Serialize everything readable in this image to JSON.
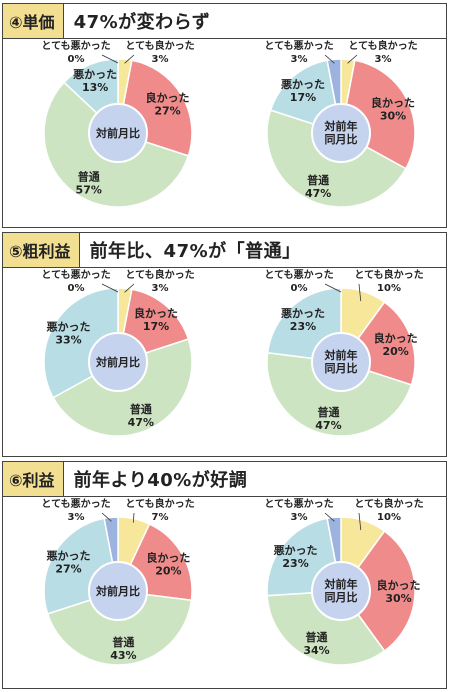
{
  "colors": {
    "とても良かった": "#f7e79b",
    "良かった": "#ef8b8b",
    "普通": "#cde4c2",
    "悪かった": "#b9dde5",
    "とても悪かった": "#9db3df",
    "center": "#c5d3ee",
    "tag_bg": "#f3df92"
  },
  "chart_data": [
    {
      "type": "pie",
      "tag": "④単価",
      "headline": "47%が変わらず",
      "charts": [
        {
          "center": [
            "対前月比"
          ],
          "slices": [
            {
              "label": "とても良かった",
              "value": 3
            },
            {
              "label": "良かった",
              "value": 27
            },
            {
              "label": "普通",
              "value": 57
            },
            {
              "label": "悪かった",
              "value": 13
            },
            {
              "label": "とても悪かった",
              "value": 0
            }
          ]
        },
        {
          "center": [
            "対前年",
            "同月比"
          ],
          "slices": [
            {
              "label": "とても良かった",
              "value": 3
            },
            {
              "label": "良かった",
              "value": 30
            },
            {
              "label": "普通",
              "value": 47
            },
            {
              "label": "悪かった",
              "value": 17
            },
            {
              "label": "とても悪かった",
              "value": 3
            }
          ]
        }
      ]
    },
    {
      "type": "pie",
      "tag": "⑤粗利益",
      "headline": "前年比、47%が「普通」",
      "charts": [
        {
          "center": [
            "対前月比"
          ],
          "slices": [
            {
              "label": "とても良かった",
              "value": 3
            },
            {
              "label": "良かった",
              "value": 17
            },
            {
              "label": "普通",
              "value": 47
            },
            {
              "label": "悪かった",
              "value": 33
            },
            {
              "label": "とても悪かった",
              "value": 0
            }
          ]
        },
        {
          "center": [
            "対前年",
            "同月比"
          ],
          "slices": [
            {
              "label": "とても良かった",
              "value": 10
            },
            {
              "label": "良かった",
              "value": 20
            },
            {
              "label": "普通",
              "value": 47
            },
            {
              "label": "悪かった",
              "value": 23
            },
            {
              "label": "とても悪かった",
              "value": 0
            }
          ]
        }
      ]
    },
    {
      "type": "pie",
      "tag": "⑥利益",
      "headline": "前年より40%が好調",
      "charts": [
        {
          "center": [
            "対前月比"
          ],
          "slices": [
            {
              "label": "とても良かった",
              "value": 7
            },
            {
              "label": "良かった",
              "value": 20
            },
            {
              "label": "普通",
              "value": 43
            },
            {
              "label": "悪かった",
              "value": 27
            },
            {
              "label": "とても悪かった",
              "value": 3
            }
          ]
        },
        {
          "center": [
            "対前年",
            "同月比"
          ],
          "slices": [
            {
              "label": "とても良かった",
              "value": 10
            },
            {
              "label": "良かった",
              "value": 30
            },
            {
              "label": "普通",
              "value": 34
            },
            {
              "label": "悪かった",
              "value": 23
            },
            {
              "label": "とても悪かった",
              "value": 3
            }
          ]
        }
      ]
    }
  ]
}
